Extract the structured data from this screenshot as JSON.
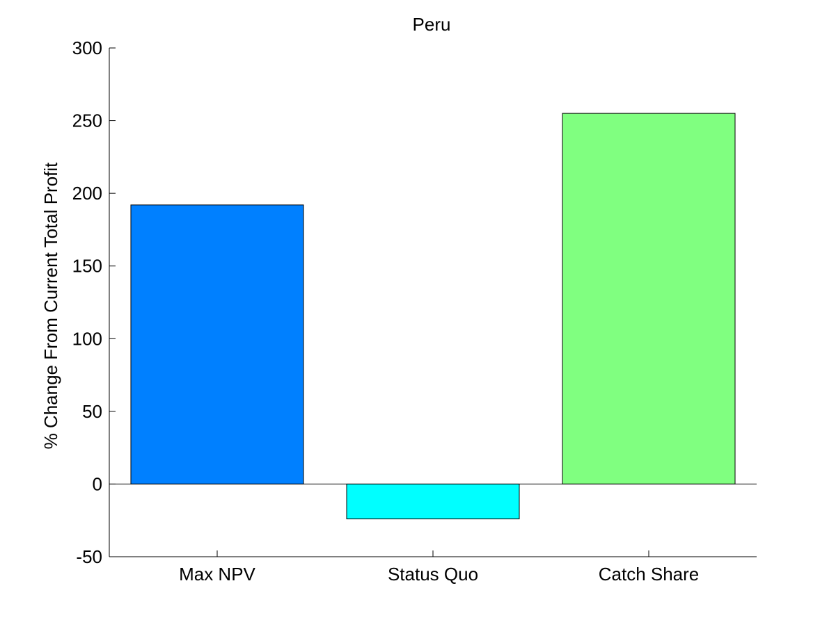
{
  "chart_data": {
    "type": "bar",
    "title": "Peru",
    "xlabel": "",
    "ylabel": "% Change From Current Total Profit",
    "categories": [
      "Max NPV",
      "Status Quo",
      "Catch Share"
    ],
    "values": [
      192,
      -24,
      255
    ],
    "colors": [
      "#0080ff",
      "#00ffff",
      "#80ff80"
    ],
    "ylim": [
      -50,
      300
    ],
    "yticks": [
      -50,
      0,
      50,
      100,
      150,
      200,
      250,
      300
    ],
    "grid": false,
    "legend": "none"
  }
}
